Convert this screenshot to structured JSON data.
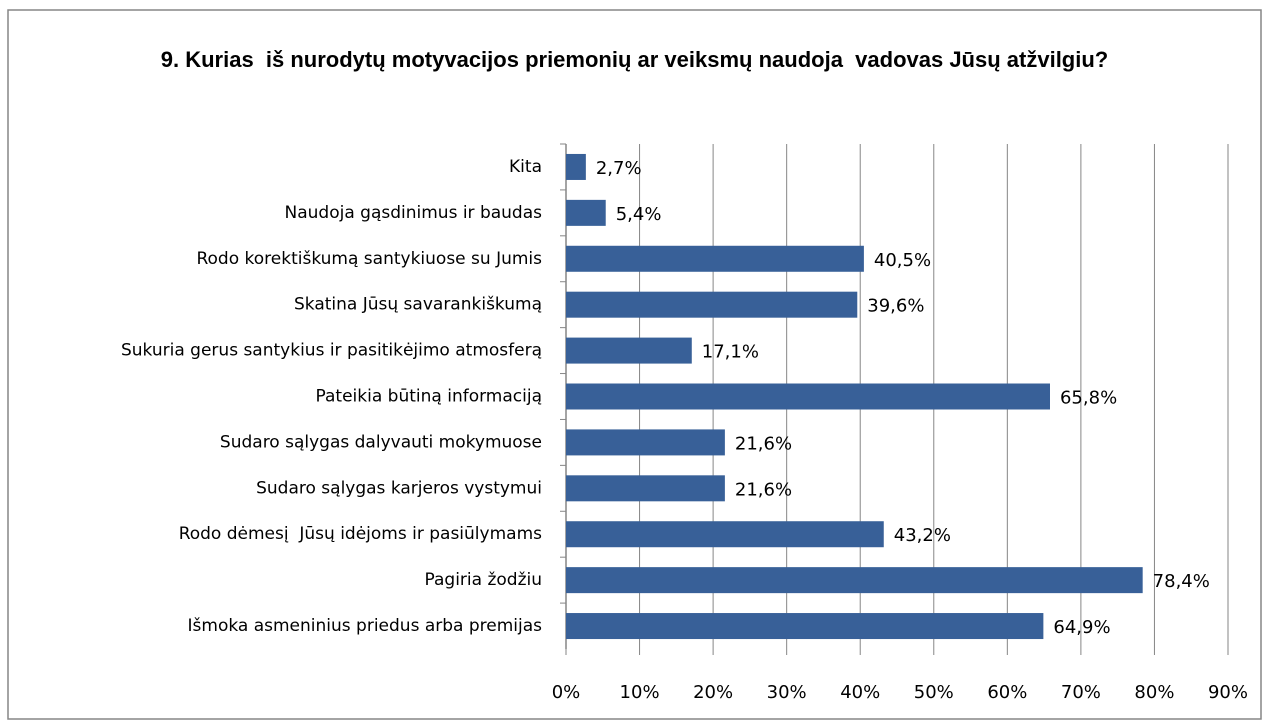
{
  "chart_data": {
    "type": "bar",
    "orientation": "horizontal",
    "title": "9. Kurias  iš nurodytų motyvacijos priemonių ar veiksmų naudoja  vadovas Jūsų atžvilgiu?",
    "categories": [
      "Kita",
      "Naudoja gąsdinimus ir baudas",
      "Rodo korektiškumą santykiuose su Jumis",
      "Skatina Jūsų savarankiškumą",
      "Sukuria gerus santykius ir pasitikėjimo atmosferą",
      "Pateikia būtiną informaciją",
      "Sudaro sąlygas dalyvauti mokymuose",
      "Sudaro sąlygas karjeros vystymui",
      "Rodo dėmesį  Jūsų idėjoms ir pasiūlymams",
      "Pagiria žodžiu",
      "Išmoka asmeninius priedus arba premijas"
    ],
    "values": [
      2.7,
      5.4,
      40.5,
      39.6,
      17.1,
      65.8,
      21.6,
      21.6,
      43.2,
      78.4,
      64.9
    ],
    "value_labels": [
      "2,7%",
      "5,4%",
      "40,5%",
      "39,6%",
      "17,1%",
      "65,8%",
      "21,6%",
      "21,6%",
      "43,2%",
      "78,4%",
      "64,9%"
    ],
    "color": "#386098",
    "xlim": [
      0,
      90
    ],
    "xticks": [
      {
        "value": 0,
        "label": "0%"
      },
      {
        "value": 10,
        "label": "10%"
      },
      {
        "value": 20,
        "label": "20%"
      },
      {
        "value": 30,
        "label": "30%"
      },
      {
        "value": 40,
        "label": "40%"
      },
      {
        "value": 50,
        "label": "50%"
      },
      {
        "value": 60,
        "label": "60%"
      },
      {
        "value": 70,
        "label": "70%"
      },
      {
        "value": 80,
        "label": "80%"
      },
      {
        "value": 90,
        "label": "90%"
      }
    ],
    "grid": true
  }
}
